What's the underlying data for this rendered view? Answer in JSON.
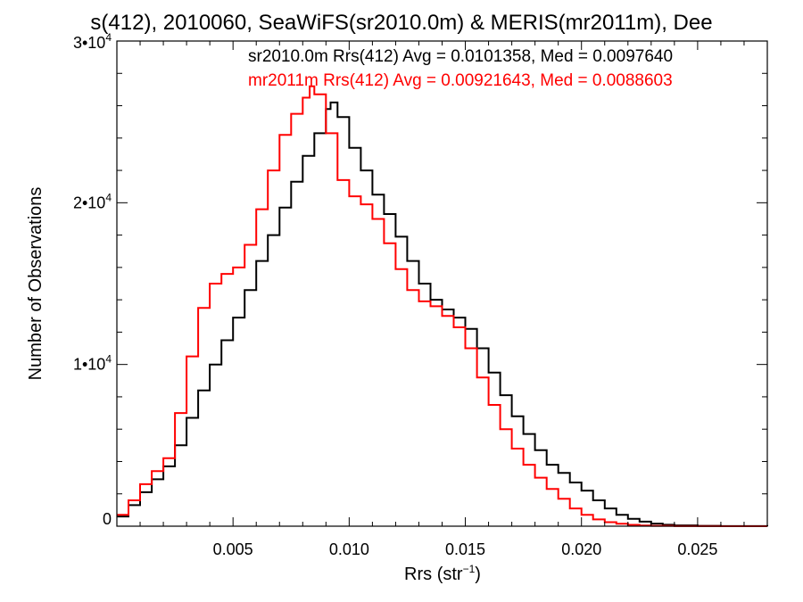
{
  "chart_data": {
    "type": "line",
    "title": "s(412), 2010060, SeaWiFS(sr2010.0m) & MERIS(mr2011m), Dee",
    "xlabel": "Rrs (str",
    "xlabel_sup": "−1",
    "xlabel_end": ")",
    "ylabel": "Number of Observations",
    "xlim": [
      0.0,
      0.028
    ],
    "ylim": [
      0,
      30000
    ],
    "xticks": [
      {
        "value": 0.005,
        "label": "0.005"
      },
      {
        "value": 0.01,
        "label": "0.010"
      },
      {
        "value": 0.015,
        "label": "0.015"
      },
      {
        "value": 0.02,
        "label": "0.020"
      },
      {
        "value": 0.025,
        "label": "0.025"
      }
    ],
    "yticks": [
      {
        "value": 0,
        "label": "0",
        "sup": ""
      },
      {
        "value": 10000,
        "label": "1•10",
        "sup": "4"
      },
      {
        "value": 20000,
        "label": "2•10",
        "sup": "4"
      },
      {
        "value": 30000,
        "label": "3•10",
        "sup": "4"
      }
    ],
    "annotations": [
      {
        "text": "sr2010.0m Rrs(412) Avg = 0.0101358, Med = 0.0097640",
        "color": "#000000"
      },
      {
        "text": "mr2011m Rrs(412) Avg = 0.00921643, Med = 0.0088603",
        "color": "#ff0000"
      }
    ],
    "series": [
      {
        "color": "#000000",
        "x": [
          0.0,
          0.0005,
          0.001,
          0.0015,
          0.002,
          0.0025,
          0.003,
          0.0035,
          0.004,
          0.0045,
          0.005,
          0.0055,
          0.006,
          0.0065,
          0.007,
          0.0075,
          0.008,
          0.0085,
          0.009,
          0.0092,
          0.0095,
          0.01,
          0.0105,
          0.011,
          0.0115,
          0.012,
          0.0125,
          0.013,
          0.0135,
          0.014,
          0.0145,
          0.015,
          0.0155,
          0.016,
          0.0165,
          0.017,
          0.0175,
          0.018,
          0.0185,
          0.019,
          0.0195,
          0.02,
          0.0205,
          0.021,
          0.0215,
          0.022,
          0.0225,
          0.023,
          0.0235,
          0.024,
          0.025,
          0.026,
          0.028
        ],
        "y": [
          600,
          1300,
          2100,
          2900,
          3700,
          5000,
          6700,
          8400,
          10000,
          11500,
          12900,
          14600,
          16400,
          18000,
          19700,
          21300,
          22900,
          24300,
          25800,
          26200,
          25300,
          23400,
          22000,
          20500,
          19300,
          17900,
          16400,
          15000,
          14000,
          13400,
          12900,
          12200,
          11000,
          9500,
          8100,
          6800,
          5700,
          4700,
          3800,
          3300,
          2700,
          2200,
          1600,
          1100,
          700,
          450,
          280,
          160,
          90,
          50,
          20,
          8,
          0
        ]
      },
      {
        "color": "#ff0000",
        "x": [
          0.0,
          0.0005,
          0.001,
          0.0015,
          0.002,
          0.0025,
          0.003,
          0.0035,
          0.004,
          0.0045,
          0.005,
          0.0055,
          0.006,
          0.0065,
          0.007,
          0.0075,
          0.008,
          0.0083,
          0.0085,
          0.009,
          0.0095,
          0.01,
          0.0105,
          0.011,
          0.0115,
          0.012,
          0.0125,
          0.013,
          0.0135,
          0.014,
          0.0145,
          0.015,
          0.0155,
          0.016,
          0.0165,
          0.017,
          0.0175,
          0.018,
          0.0185,
          0.019,
          0.0195,
          0.02,
          0.0205,
          0.021,
          0.0215,
          0.022,
          0.0225,
          0.023,
          0.024,
          0.026,
          0.028
        ],
        "y": [
          700,
          1600,
          2600,
          3400,
          4200,
          7000,
          10500,
          13500,
          15000,
          15600,
          16000,
          17400,
          19600,
          22000,
          24200,
          25500,
          26500,
          27200,
          26700,
          24300,
          21400,
          20400,
          19900,
          19000,
          17500,
          15900,
          14600,
          13900,
          13600,
          13000,
          12300,
          11000,
          9200,
          7500,
          6000,
          4800,
          3800,
          3000,
          2300,
          1700,
          1100,
          700,
          420,
          250,
          150,
          80,
          40,
          20,
          8,
          2,
          0
        ]
      }
    ]
  }
}
